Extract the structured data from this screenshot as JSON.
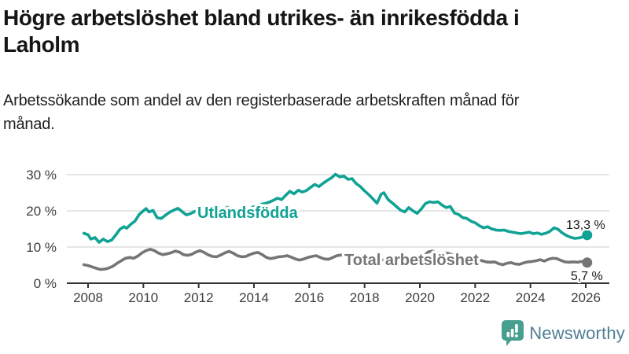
{
  "header": {
    "title": "Högre arbetslöshet bland utrikes- än inrikesfödda i Laholm",
    "subtitle": "Arbetssökande som andel av den registerbaserade arbetskraften månad för månad."
  },
  "footer": {
    "brand_name": "Newsworthy",
    "logo_icon": "bar-chart-speech-bubble-icon"
  },
  "colors": {
    "foreign_born_line": "#10a294",
    "total_line": "#757575",
    "grid": "#dedede",
    "axis": "#333333",
    "tick_text": "#3d3d3d",
    "value_text": "#1a1a1a",
    "brand_icon": "#47a08f",
    "brand_text": "#4f7e93"
  },
  "chart_data": {
    "type": "line",
    "title": "Högre arbetslöshet bland utrikes- än inrikesfödda i Laholm",
    "subtitle": "Arbetssökande som andel av den registerbaserade arbetskraften månad för månad.",
    "grid": true,
    "legend": "inline-labels",
    "x_axis": {
      "label": "",
      "min": 2007.8,
      "max": 2026.4,
      "ticks": [
        2008,
        2010,
        2012,
        2014,
        2016,
        2018,
        2020,
        2022,
        2024,
        2026
      ]
    },
    "y_axis": {
      "label": "",
      "min": 0,
      "max": 32,
      "ticks": [
        {
          "value": 0,
          "label": "0 %"
        },
        {
          "value": 10,
          "label": "10 %"
        },
        {
          "value": 20,
          "label": "20 %"
        },
        {
          "value": 30,
          "label": "30 %"
        }
      ]
    },
    "series": [
      {
        "name": "Utlandsfödda",
        "color": "#10a294",
        "end_label": "13,3 %",
        "end_value": 13.3,
        "points": [
          [
            2007.85,
            13.8
          ],
          [
            2008.0,
            13.4
          ],
          [
            2008.1,
            12.2
          ],
          [
            2008.25,
            12.6
          ],
          [
            2008.4,
            11.3
          ],
          [
            2008.55,
            12.2
          ],
          [
            2008.7,
            11.5
          ],
          [
            2008.85,
            11.9
          ],
          [
            2009.0,
            13.3
          ],
          [
            2009.15,
            14.9
          ],
          [
            2009.3,
            15.6
          ],
          [
            2009.4,
            15.2
          ],
          [
            2009.55,
            16.3
          ],
          [
            2009.7,
            17.2
          ],
          [
            2009.85,
            19.0
          ],
          [
            2010.0,
            20.0
          ],
          [
            2010.1,
            20.6
          ],
          [
            2010.2,
            19.7
          ],
          [
            2010.35,
            20.1
          ],
          [
            2010.5,
            18.1
          ],
          [
            2010.65,
            17.9
          ],
          [
            2010.8,
            18.8
          ],
          [
            2010.95,
            19.6
          ],
          [
            2011.1,
            20.2
          ],
          [
            2011.25,
            20.7
          ],
          [
            2011.4,
            19.8
          ],
          [
            2011.55,
            18.9
          ],
          [
            2011.7,
            19.2
          ],
          [
            2011.85,
            19.8
          ],
          [
            2012.0,
            20.3
          ],
          [
            2012.15,
            20.7
          ],
          [
            2012.3,
            21.0
          ],
          [
            2012.45,
            20.3
          ],
          [
            2012.6,
            19.7
          ],
          [
            2012.75,
            20.0
          ],
          [
            2012.9,
            20.5
          ],
          [
            2013.05,
            21.0
          ],
          [
            2013.2,
            20.5
          ],
          [
            2013.35,
            19.9
          ],
          [
            2013.5,
            19.7
          ],
          [
            2013.65,
            20.1
          ],
          [
            2013.8,
            20.6
          ],
          [
            2013.95,
            21.0
          ],
          [
            2014.1,
            21.4
          ],
          [
            2014.25,
            21.8
          ],
          [
            2014.4,
            22.0
          ],
          [
            2014.55,
            22.4
          ],
          [
            2014.7,
            22.9
          ],
          [
            2014.85,
            23.5
          ],
          [
            2015.0,
            23.1
          ],
          [
            2015.15,
            24.3
          ],
          [
            2015.3,
            25.4
          ],
          [
            2015.45,
            24.7
          ],
          [
            2015.6,
            25.7
          ],
          [
            2015.75,
            25.2
          ],
          [
            2015.9,
            25.6
          ],
          [
            2016.05,
            26.5
          ],
          [
            2016.2,
            27.3
          ],
          [
            2016.35,
            26.7
          ],
          [
            2016.5,
            27.6
          ],
          [
            2016.65,
            28.4
          ],
          [
            2016.8,
            29.1
          ],
          [
            2016.95,
            30.1
          ],
          [
            2017.1,
            29.4
          ],
          [
            2017.25,
            29.6
          ],
          [
            2017.4,
            28.7
          ],
          [
            2017.55,
            28.9
          ],
          [
            2017.7,
            27.5
          ],
          [
            2017.85,
            26.7
          ],
          [
            2018.0,
            25.5
          ],
          [
            2018.15,
            24.5
          ],
          [
            2018.3,
            23.3
          ],
          [
            2018.45,
            22.1
          ],
          [
            2018.6,
            24.6
          ],
          [
            2018.7,
            25.0
          ],
          [
            2018.85,
            23.1
          ],
          [
            2019.0,
            22.2
          ],
          [
            2019.15,
            21.2
          ],
          [
            2019.3,
            20.2
          ],
          [
            2019.45,
            19.7
          ],
          [
            2019.6,
            20.9
          ],
          [
            2019.75,
            20.0
          ],
          [
            2019.9,
            19.3
          ],
          [
            2020.05,
            20.5
          ],
          [
            2020.2,
            22.0
          ],
          [
            2020.35,
            22.5
          ],
          [
            2020.5,
            22.3
          ],
          [
            2020.65,
            22.5
          ],
          [
            2020.8,
            21.6
          ],
          [
            2020.95,
            20.9
          ],
          [
            2021.1,
            21.2
          ],
          [
            2021.25,
            19.4
          ],
          [
            2021.4,
            19.0
          ],
          [
            2021.55,
            18.1
          ],
          [
            2021.7,
            17.9
          ],
          [
            2021.85,
            17.1
          ],
          [
            2022.0,
            16.7
          ],
          [
            2022.15,
            15.9
          ],
          [
            2022.3,
            15.3
          ],
          [
            2022.45,
            15.6
          ],
          [
            2022.6,
            15.0
          ],
          [
            2022.75,
            14.7
          ],
          [
            2022.9,
            14.6
          ],
          [
            2023.05,
            14.7
          ],
          [
            2023.2,
            14.3
          ],
          [
            2023.35,
            14.1
          ],
          [
            2023.5,
            13.9
          ],
          [
            2023.65,
            13.7
          ],
          [
            2023.8,
            13.9
          ],
          [
            2023.95,
            14.1
          ],
          [
            2024.1,
            13.7
          ],
          [
            2024.25,
            13.9
          ],
          [
            2024.4,
            13.5
          ],
          [
            2024.55,
            13.8
          ],
          [
            2024.7,
            14.3
          ],
          [
            2024.85,
            15.3
          ],
          [
            2025.0,
            14.9
          ],
          [
            2025.15,
            13.9
          ],
          [
            2025.3,
            13.2
          ],
          [
            2025.45,
            12.7
          ],
          [
            2025.6,
            12.4
          ],
          [
            2025.75,
            12.5
          ],
          [
            2025.9,
            12.8
          ],
          [
            2026.05,
            13.3
          ]
        ]
      },
      {
        "name": "Total arbetslöshet",
        "color": "#757575",
        "end_label": "5,7 %",
        "end_value": 5.7,
        "points": [
          [
            2007.85,
            5.1
          ],
          [
            2008.0,
            4.9
          ],
          [
            2008.15,
            4.5
          ],
          [
            2008.3,
            4.1
          ],
          [
            2008.45,
            3.8
          ],
          [
            2008.6,
            3.9
          ],
          [
            2008.75,
            4.2
          ],
          [
            2008.9,
            4.7
          ],
          [
            2009.05,
            5.5
          ],
          [
            2009.2,
            6.2
          ],
          [
            2009.35,
            6.9
          ],
          [
            2009.5,
            7.1
          ],
          [
            2009.65,
            6.9
          ],
          [
            2009.8,
            7.5
          ],
          [
            2009.95,
            8.4
          ],
          [
            2010.1,
            9.0
          ],
          [
            2010.25,
            9.4
          ],
          [
            2010.4,
            9.0
          ],
          [
            2010.55,
            8.3
          ],
          [
            2010.7,
            7.9
          ],
          [
            2010.85,
            8.1
          ],
          [
            2011.0,
            8.4
          ],
          [
            2011.15,
            8.9
          ],
          [
            2011.3,
            8.6
          ],
          [
            2011.45,
            7.9
          ],
          [
            2011.6,
            7.7
          ],
          [
            2011.75,
            8.0
          ],
          [
            2011.9,
            8.6
          ],
          [
            2012.05,
            9.0
          ],
          [
            2012.2,
            8.5
          ],
          [
            2012.35,
            7.8
          ],
          [
            2012.5,
            7.4
          ],
          [
            2012.65,
            7.3
          ],
          [
            2012.8,
            7.8
          ],
          [
            2012.95,
            8.4
          ],
          [
            2013.1,
            8.8
          ],
          [
            2013.25,
            8.3
          ],
          [
            2013.4,
            7.6
          ],
          [
            2013.55,
            7.3
          ],
          [
            2013.7,
            7.4
          ],
          [
            2013.85,
            7.9
          ],
          [
            2014.0,
            8.3
          ],
          [
            2014.15,
            8.5
          ],
          [
            2014.3,
            7.9
          ],
          [
            2014.45,
            7.1
          ],
          [
            2014.6,
            6.8
          ],
          [
            2014.75,
            7.0
          ],
          [
            2014.9,
            7.3
          ],
          [
            2015.05,
            7.4
          ],
          [
            2015.2,
            7.6
          ],
          [
            2015.35,
            7.2
          ],
          [
            2015.5,
            6.7
          ],
          [
            2015.65,
            6.4
          ],
          [
            2015.8,
            6.7
          ],
          [
            2015.95,
            7.1
          ],
          [
            2016.1,
            7.4
          ],
          [
            2016.25,
            7.6
          ],
          [
            2016.4,
            7.1
          ],
          [
            2016.55,
            6.7
          ],
          [
            2016.7,
            6.6
          ],
          [
            2016.85,
            7.1
          ],
          [
            2017.0,
            7.6
          ],
          [
            2017.15,
            7.8
          ],
          [
            2017.3,
            7.4
          ],
          [
            2017.45,
            6.9
          ],
          [
            2017.6,
            6.6
          ],
          [
            2017.75,
            6.8
          ],
          [
            2017.9,
            7.1
          ],
          [
            2018.05,
            7.3
          ],
          [
            2018.2,
            7.0
          ],
          [
            2018.35,
            6.5
          ],
          [
            2018.5,
            6.2
          ],
          [
            2018.65,
            6.4
          ],
          [
            2018.8,
            6.7
          ],
          [
            2018.95,
            7.0
          ],
          [
            2019.1,
            6.8
          ],
          [
            2019.25,
            6.4
          ],
          [
            2019.4,
            6.0
          ],
          [
            2019.55,
            6.1
          ],
          [
            2019.7,
            6.4
          ],
          [
            2019.85,
            6.6
          ],
          [
            2020.0,
            6.8
          ],
          [
            2020.15,
            7.6
          ],
          [
            2020.3,
            8.6
          ],
          [
            2020.45,
            8.9
          ],
          [
            2020.6,
            8.5
          ],
          [
            2020.75,
            8.2
          ],
          [
            2020.9,
            8.4
          ],
          [
            2021.05,
            8.2
          ],
          [
            2021.2,
            7.8
          ],
          [
            2021.35,
            7.3
          ],
          [
            2021.5,
            6.9
          ],
          [
            2021.65,
            6.6
          ],
          [
            2021.8,
            6.7
          ],
          [
            2021.95,
            6.9
          ],
          [
            2022.1,
            6.6
          ],
          [
            2022.25,
            6.2
          ],
          [
            2022.4,
            5.9
          ],
          [
            2022.55,
            5.8
          ],
          [
            2022.7,
            5.9
          ],
          [
            2022.85,
            5.4
          ],
          [
            2023.0,
            5.1
          ],
          [
            2023.15,
            5.5
          ],
          [
            2023.3,
            5.7
          ],
          [
            2023.45,
            5.3
          ],
          [
            2023.6,
            5.2
          ],
          [
            2023.75,
            5.6
          ],
          [
            2023.9,
            5.9
          ],
          [
            2024.05,
            6.0
          ],
          [
            2024.2,
            6.2
          ],
          [
            2024.35,
            6.5
          ],
          [
            2024.5,
            6.1
          ],
          [
            2024.65,
            6.6
          ],
          [
            2024.8,
            6.9
          ],
          [
            2024.95,
            6.8
          ],
          [
            2025.1,
            6.3
          ],
          [
            2025.25,
            5.9
          ],
          [
            2025.4,
            5.8
          ],
          [
            2025.55,
            5.9
          ],
          [
            2025.7,
            5.8
          ],
          [
            2025.85,
            6.0
          ],
          [
            2026.05,
            5.7
          ]
        ]
      }
    ]
  }
}
